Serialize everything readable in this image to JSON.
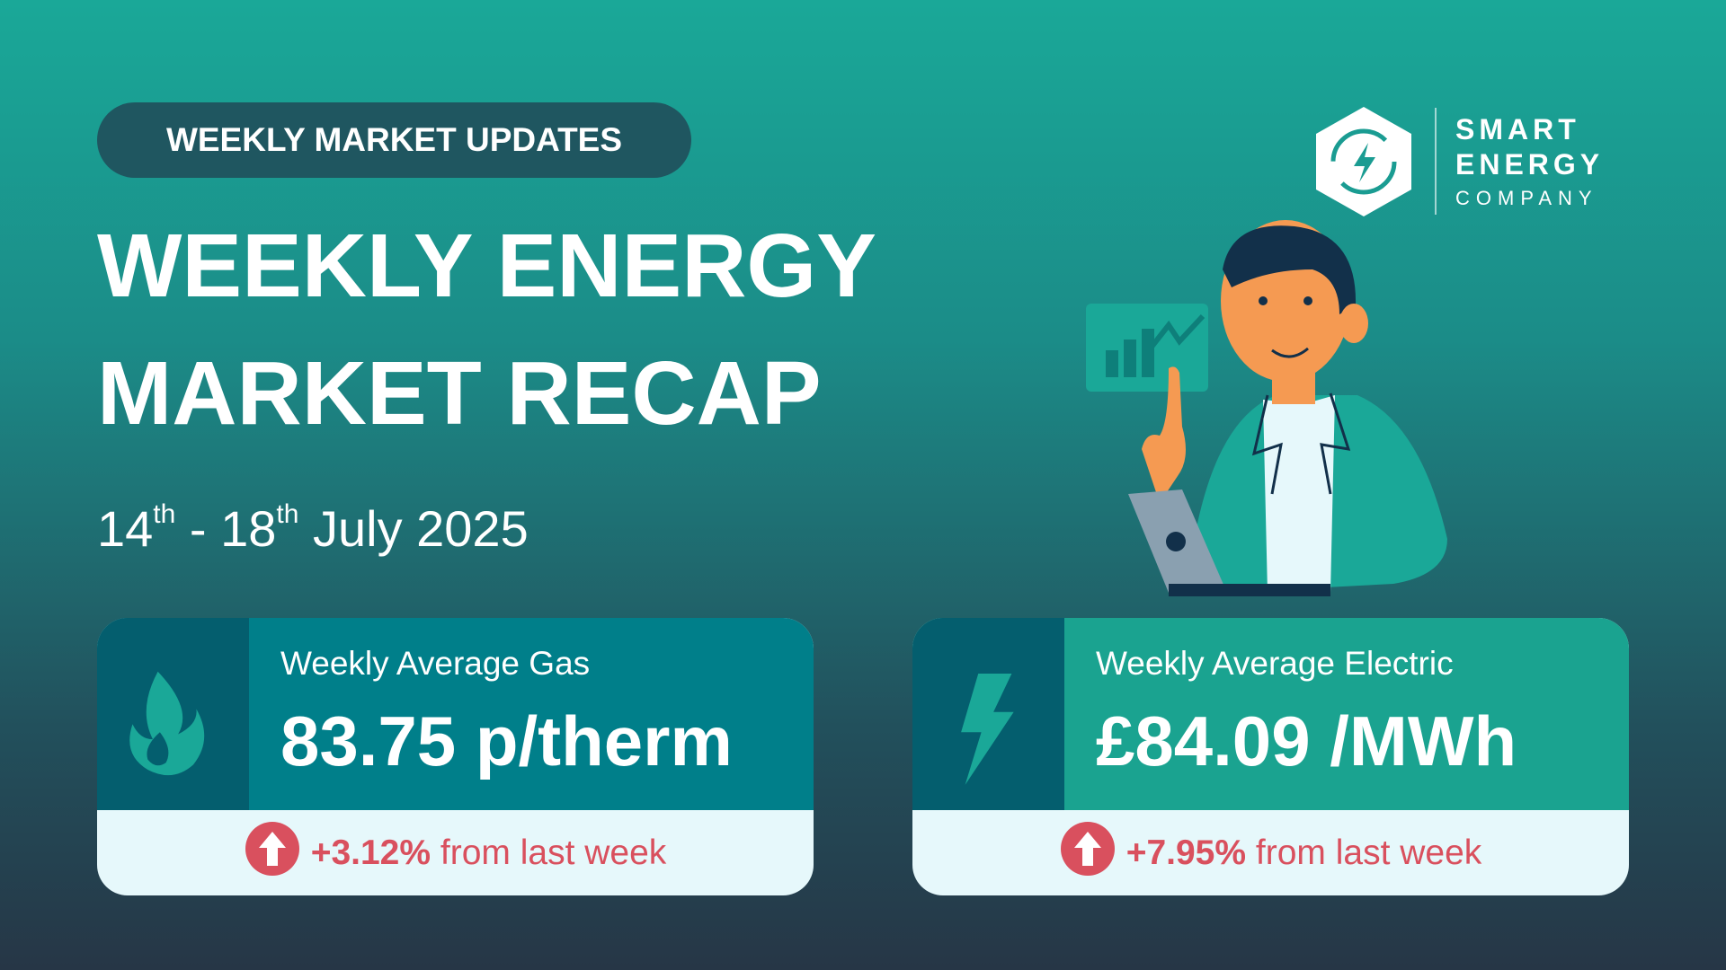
{
  "badge": "WEEKLY MARKET UPDATES",
  "title": {
    "line1": "WEEKLY ENERGY",
    "line2": "MARKET RECAP"
  },
  "date": {
    "start_day": "14",
    "start_suffix": "th",
    "separator": "-",
    "end_day": "18",
    "end_suffix": "th",
    "month_year": "July 2025"
  },
  "logo": {
    "line1": "SMART",
    "line2": "ENERGY",
    "line3": "COMPANY"
  },
  "cards": [
    {
      "label": "Weekly Average Gas",
      "value": "83.75 p/therm",
      "change": "+3.12%",
      "change_text": "from last week"
    },
    {
      "label": "Weekly Average Electric",
      "value": "£84.09 /MWh",
      "change": "+7.95%",
      "change_text": "from last week"
    }
  ]
}
